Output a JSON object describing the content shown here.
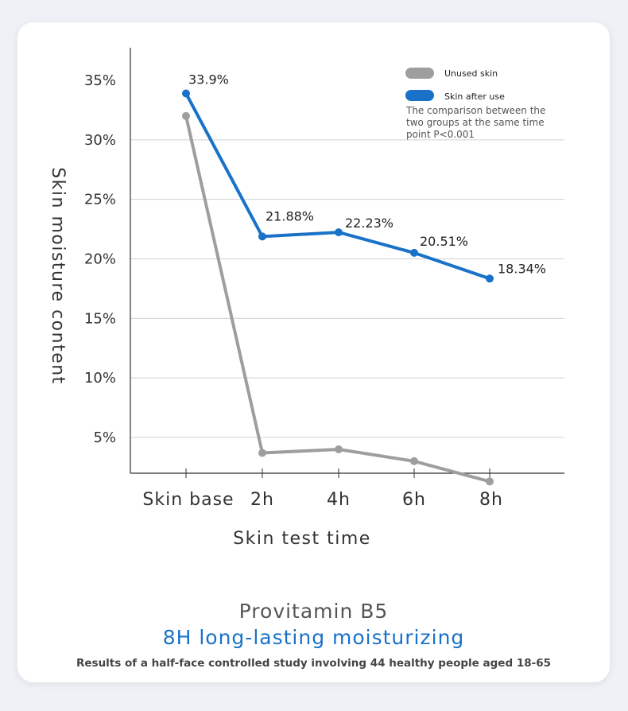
{
  "chart_data": {
    "type": "line",
    "categories": [
      "Skin base",
      "2h",
      "4h",
      "6h",
      "8h"
    ],
    "series": [
      {
        "name": "Unused skin",
        "color": "#9e9e9e",
        "values": [
          32.0,
          3.7,
          4.0,
          3.0,
          1.3
        ]
      },
      {
        "name": "Skin after use",
        "color": "#1a72c8",
        "values": [
          33.9,
          21.88,
          22.23,
          20.51,
          18.34
        ],
        "data_labels": [
          "33.9%",
          "21.88%",
          "22.23%",
          "20.51%",
          "18.34%"
        ]
      }
    ],
    "y_ticks": [
      5,
      10,
      15,
      20,
      25,
      30,
      35
    ],
    "y_tick_labels": [
      "5%",
      "10%",
      "15%",
      "20%",
      "25%",
      "30%",
      "35%"
    ],
    "ylim": [
      1,
      36
    ],
    "xlabel": "Skin test time",
    "ylabel": "Skin moisture content",
    "legend_position": "top-right",
    "grid": true,
    "note": [
      "The comparison between the",
      "two groups at the same time",
      "point P<0.001"
    ]
  },
  "title": {
    "line1": "Provitamin B5",
    "line2": "8H long-lasting moisturizing",
    "line3": "Results of a half-face controlled study involving 44 healthy people aged 18-65"
  }
}
